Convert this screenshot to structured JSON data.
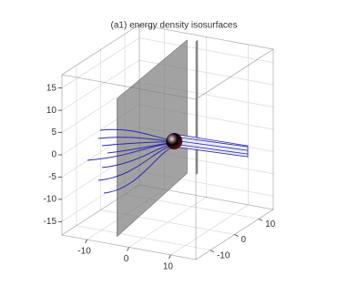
{
  "chart_data": {
    "type": "isosurface3d",
    "title": "(a1) energy density isosurfaces",
    "xlim": [
      -16,
      16
    ],
    "xticks": [
      -10,
      0,
      10
    ],
    "ylim": [
      -16,
      16
    ],
    "yticks": [
      -10,
      0,
      10
    ],
    "zlim": [
      -18,
      18
    ],
    "zticks": [
      -15,
      -10,
      -5,
      0,
      5,
      10,
      15
    ],
    "grid": true,
    "plane_color": "#7a7a7a",
    "streamline_color": "#2a2ab0",
    "sphere_color": "#c8505a"
  }
}
